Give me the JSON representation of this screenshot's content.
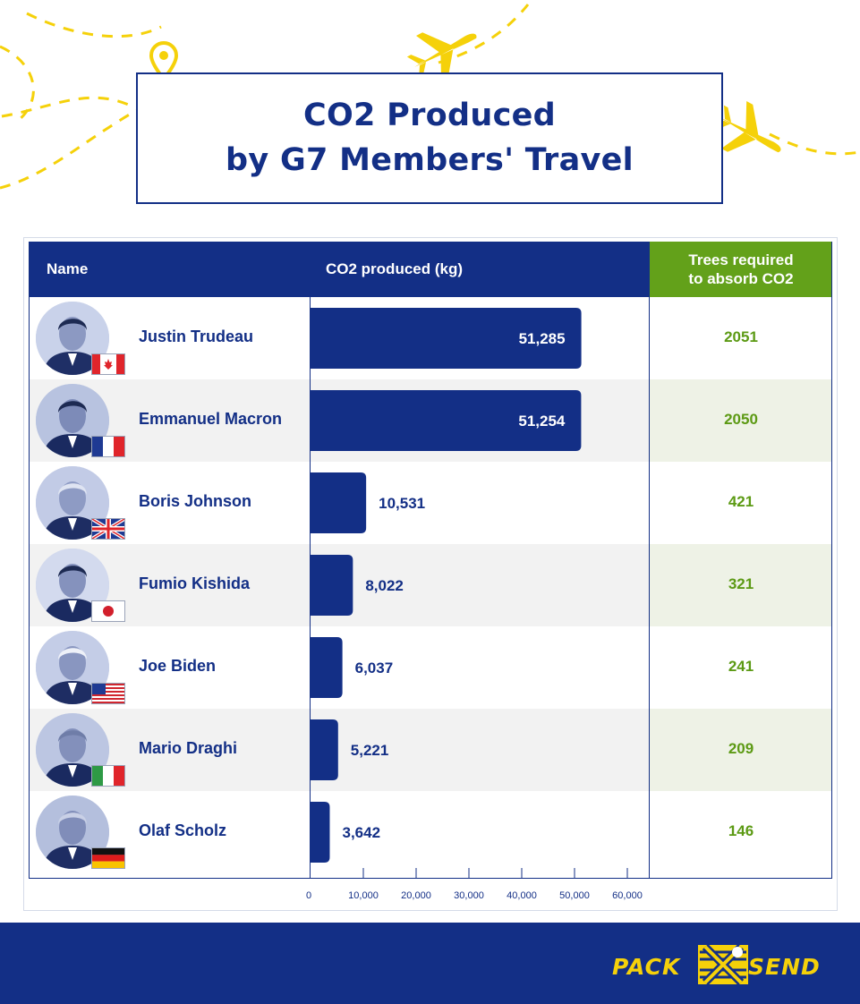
{
  "title": {
    "line1": "CO2 Produced",
    "line2": "by G7 Members' Travel"
  },
  "header": {
    "name": "Name",
    "co2": "CO2 produced (kg)",
    "trees_line1": "Trees required",
    "trees_line2": "to absorb CO2"
  },
  "colors": {
    "navy": "#132f86",
    "green": "#63a11a",
    "yellow": "#f5d10a",
    "row_alt_left": "#f2f2f2",
    "row_alt_right": "#eef2e6"
  },
  "rows": [
    {
      "name": "Justin Trudeau",
      "co2": 51285,
      "co2_label": "51,285",
      "trees": "2051",
      "flag": "canada-flag-icon"
    },
    {
      "name": "Emmanuel Macron",
      "co2": 51254,
      "co2_label": "51,254",
      "trees": "2050",
      "flag": "france-flag-icon"
    },
    {
      "name": "Boris Johnson",
      "co2": 10531,
      "co2_label": "10,531",
      "trees": "421",
      "flag": "uk-flag-icon"
    },
    {
      "name": "Fumio Kishida",
      "co2": 8022,
      "co2_label": "8,022",
      "trees": "321",
      "flag": "japan-flag-icon"
    },
    {
      "name": "Joe Biden",
      "co2": 6037,
      "co2_label": "6,037",
      "trees": "241",
      "flag": "usa-flag-icon"
    },
    {
      "name": "Mario Draghi",
      "co2": 5221,
      "co2_label": "5,221",
      "trees": "209",
      "flag": "italy-flag-icon"
    },
    {
      "name": "Olaf Scholz",
      "co2": 3642,
      "co2_label": "3,642",
      "trees": "146",
      "flag": "germany-flag-icon"
    }
  ],
  "chart_data": {
    "type": "bar",
    "orientation": "horizontal",
    "title": "CO2 Produced by G7 Members' Travel",
    "xlabel": "CO2 produced (kg)",
    "ylabel": "",
    "categories": [
      "Justin Trudeau",
      "Emmanuel Macron",
      "Boris Johnson",
      "Fumio Kishida",
      "Joe Biden",
      "Mario Draghi",
      "Olaf Scholz"
    ],
    "values": [
      51285,
      51254,
      10531,
      8022,
      6037,
      5221,
      3642
    ],
    "value_labels": [
      "51,285",
      "51,254",
      "10,531",
      "8,022",
      "6,037",
      "5,221",
      "3,642"
    ],
    "xlim": [
      0,
      60000
    ],
    "xticks": [
      0,
      10000,
      20000,
      30000,
      40000,
      50000,
      60000
    ],
    "xtick_labels": [
      "0",
      "10,000",
      "20,000",
      "30,000",
      "40,000",
      "50,000",
      "60,000"
    ],
    "grid": false,
    "extra_column": {
      "name": "Trees required to absorb CO2",
      "values": [
        2051,
        2050,
        421,
        321,
        241,
        209,
        146
      ]
    }
  },
  "footer": {
    "logo_left": "PACK",
    "logo_right": "SEND",
    "logo_mark": "packsend-logo-icon"
  }
}
